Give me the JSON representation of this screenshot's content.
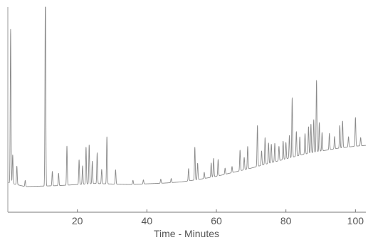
{
  "chart_data": {
    "type": "line",
    "title": "",
    "xlabel": "Time - Minutes",
    "ylabel": "",
    "xlim": [
      0,
      103
    ],
    "ylim": [
      0,
      100
    ],
    "x_ticks": [
      20,
      40,
      60,
      80,
      100
    ],
    "x_tick_labels": [
      "20",
      "40",
      "60",
      "80",
      "100"
    ],
    "grid": false,
    "legend": "none",
    "line_color": "#8a8a8a",
    "axis_color": "#777777",
    "series": [
      {
        "baseline": [
          [
            0,
            14.5
          ],
          [
            5,
            12.5
          ],
          [
            15,
            13.0
          ],
          [
            25,
            14.0
          ],
          [
            35,
            13.5
          ],
          [
            45,
            14.2
          ],
          [
            50,
            14.8
          ],
          [
            55,
            16.0
          ],
          [
            60,
            17.5
          ],
          [
            65,
            19.5
          ],
          [
            70,
            21.5
          ],
          [
            75,
            23.8
          ],
          [
            80,
            26.0
          ],
          [
            85,
            28.2
          ],
          [
            90,
            29.8
          ],
          [
            95,
            31.2
          ],
          [
            100,
            32.2
          ],
          [
            103,
            32.6
          ]
        ],
        "peaks": [
          [
            0.8,
            75
          ],
          [
            1.4,
            14
          ],
          [
            2.6,
            9
          ],
          [
            5.0,
            3
          ],
          [
            10.8,
            97
          ],
          [
            12.8,
            7
          ],
          [
            14.6,
            6
          ],
          [
            17.0,
            19
          ],
          [
            20.5,
            12
          ],
          [
            21.5,
            9
          ],
          [
            22.5,
            18
          ],
          [
            23.4,
            19
          ],
          [
            24.3,
            11
          ],
          [
            25.7,
            15
          ],
          [
            27.0,
            7
          ],
          [
            28.5,
            23
          ],
          [
            31.0,
            7
          ],
          [
            36.0,
            2
          ],
          [
            39.0,
            2
          ],
          [
            44.0,
            2
          ],
          [
            47.0,
            2
          ],
          [
            52.0,
            6
          ],
          [
            53.8,
            16
          ],
          [
            54.6,
            8
          ],
          [
            56.5,
            3
          ],
          [
            58.5,
            7
          ],
          [
            59.2,
            9
          ],
          [
            60.5,
            8
          ],
          [
            62.5,
            3
          ],
          [
            64.5,
            3
          ],
          [
            66.8,
            10
          ],
          [
            68.0,
            6
          ],
          [
            69.0,
            11
          ],
          [
            71.8,
            20
          ],
          [
            73.0,
            7
          ],
          [
            74.0,
            13
          ],
          [
            75.0,
            10
          ],
          [
            75.8,
            9
          ],
          [
            76.8,
            9
          ],
          [
            78.0,
            7
          ],
          [
            79.2,
            9
          ],
          [
            80.0,
            8
          ],
          [
            81.0,
            11
          ],
          [
            81.8,
            29
          ],
          [
            83.0,
            12
          ],
          [
            84.0,
            9
          ],
          [
            85.5,
            10
          ],
          [
            86.5,
            13
          ],
          [
            87.2,
            14
          ],
          [
            88.0,
            16
          ],
          [
            88.8,
            35
          ],
          [
            89.6,
            14
          ],
          [
            90.4,
            9
          ],
          [
            92.5,
            8
          ],
          [
            94.0,
            6
          ],
          [
            95.5,
            11
          ],
          [
            96.3,
            13
          ],
          [
            98.0,
            5
          ],
          [
            100.0,
            14
          ],
          [
            101.5,
            4
          ]
        ]
      }
    ]
  }
}
